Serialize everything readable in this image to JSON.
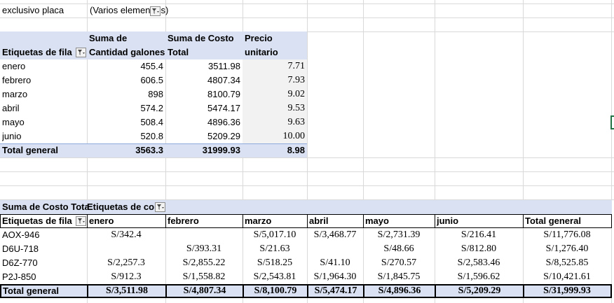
{
  "filter": {
    "label": "exclusivo placa",
    "value_left": "(Varios elemen",
    "value_right": "s)"
  },
  "pivot1": {
    "row_header": "Etiquetas de fila",
    "col1": [
      "Suma de",
      "Cantidad galones"
    ],
    "col2": [
      "Suma de Costo",
      "Total"
    ],
    "col3": [
      "Precio",
      "unitario"
    ],
    "rows": [
      {
        "label": "enero",
        "galones": "455.4",
        "costo": "3511.98",
        "precio": "7.71"
      },
      {
        "label": "febrero",
        "galones": "606.5",
        "costo": "4807.34",
        "precio": "7.93"
      },
      {
        "label": "marzo",
        "galones": "898",
        "costo": "8100.79",
        "precio": "9.02"
      },
      {
        "label": "abril",
        "galones": "574.2",
        "costo": "5474.17",
        "precio": "9.53"
      },
      {
        "label": "mayo",
        "galones": "508.4",
        "costo": "4896.36",
        "precio": "9.63"
      },
      {
        "label": "junio",
        "galones": "520.8",
        "costo": "5209.29",
        "precio": "10.00"
      }
    ],
    "total": {
      "label": "Total general",
      "galones": "3563.3",
      "costo": "31999.93",
      "precio": "8.98"
    }
  },
  "pivot2": {
    "value_label": "Suma de Costo Tota",
    "col_label": "Etiquetas de co",
    "row_header": "Etiquetas de fila",
    "columns": [
      "enero",
      "febrero",
      "marzo",
      "abril",
      "mayo",
      "junio",
      "Total general"
    ],
    "rows": [
      {
        "label": "AOX-946",
        "values": [
          "S/342.4",
          "",
          "S/5,017.10",
          "S/3,468.77",
          "S/2,731.39",
          "S/216.41",
          "S/11,776.08"
        ]
      },
      {
        "label": "D6U-718",
        "values": [
          "",
          "S/393.31",
          "S/21.63",
          "",
          "S/48.66",
          "S/812.80",
          "S/1,276.40"
        ]
      },
      {
        "label": "D6Z-770",
        "values": [
          "S/2,257.3",
          "S/2,855.22",
          "S/518.25",
          "S/41.10",
          "S/270.57",
          "S/2,583.46",
          "S/8,525.85"
        ]
      },
      {
        "label": "P2J-850",
        "values": [
          "S/912.3",
          "S/1,558.82",
          "S/2,543.81",
          "S/1,964.30",
          "S/1,845.75",
          "S/1,596.62",
          "S/10,421.61"
        ]
      }
    ],
    "total": {
      "label": "Total general",
      "values": [
        "S/3,511.98",
        "S/4,807.34",
        "S/8,100.79",
        "S/5,474.17",
        "S/4,896.36",
        "S/5,209.29",
        "S/31,999.93"
      ]
    }
  }
}
